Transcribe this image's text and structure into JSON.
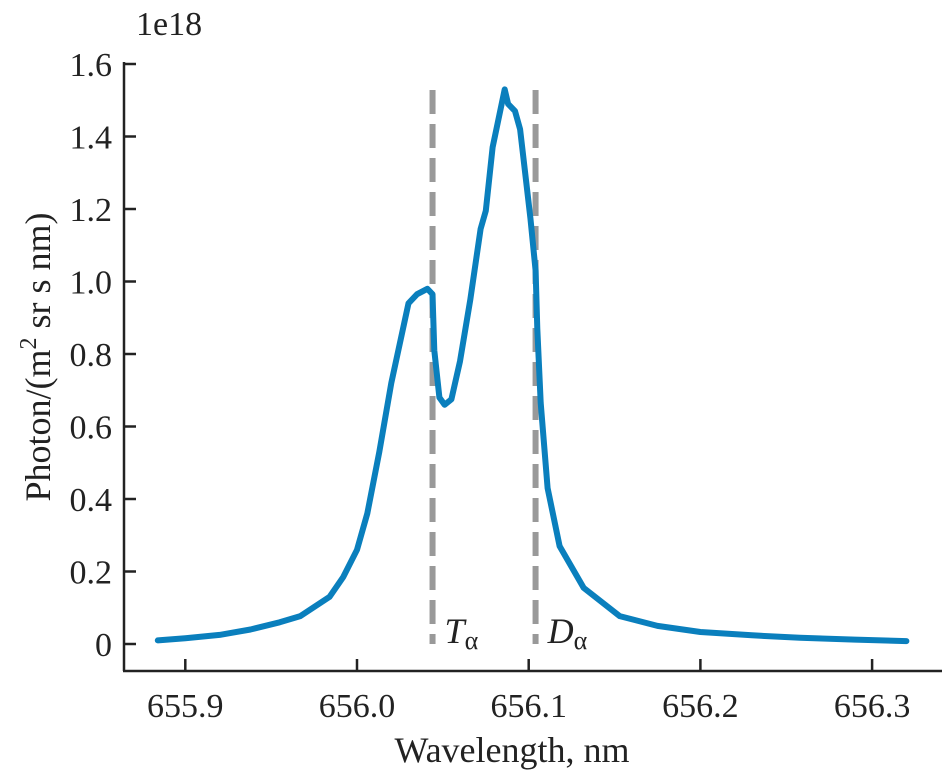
{
  "chart_data": {
    "type": "line",
    "title": "",
    "xlabel": "Wavelength, nm",
    "ylabel": "Photon/(m",
    "ylabel_sup": "2",
    "ylabel_rest": " sr s nm)",
    "y_multiplier": "1e18",
    "xlim": [
      655.87,
      656.34
    ],
    "ylim": [
      -0.075,
      1.6
    ],
    "x_ticks": [
      655.9,
      656.0,
      656.1,
      656.2,
      656.3
    ],
    "x_tick_labels": [
      "655.9",
      "656.0",
      "656.1",
      "656.2",
      "656.3"
    ],
    "y_ticks": [
      0,
      0.2,
      0.4,
      0.6,
      0.8,
      1.0,
      1.2,
      1.4,
      1.6
    ],
    "y_tick_labels": [
      "0",
      "0.2",
      "0.4",
      "0.6",
      "0.8",
      "1.0",
      "1.2",
      "1.4",
      "1.6"
    ],
    "grid": false,
    "series": [
      {
        "name": "spectrum",
        "color": "#0a7fbd",
        "x": [
          655.884,
          655.9,
          655.92,
          655.938,
          655.955,
          655.967,
          655.984,
          655.992,
          656.0,
          656.006,
          656.013,
          656.02,
          656.025,
          656.03,
          656.035,
          656.041,
          656.044,
          656.045,
          656.048,
          656.051,
          656.055,
          656.06,
          656.066,
          656.072,
          656.075,
          656.079,
          656.086,
          656.088,
          656.092,
          656.095,
          656.101,
          656.104,
          656.105,
          656.107,
          656.111,
          656.118,
          656.132,
          656.153,
          656.175,
          656.2,
          656.23,
          656.258,
          656.29,
          656.32
        ],
        "y": [
          0.01,
          0.016,
          0.025,
          0.04,
          0.06,
          0.077,
          0.13,
          0.185,
          0.26,
          0.36,
          0.53,
          0.72,
          0.83,
          0.94,
          0.965,
          0.98,
          0.965,
          0.81,
          0.68,
          0.66,
          0.675,
          0.78,
          0.95,
          1.145,
          1.195,
          1.37,
          1.53,
          1.49,
          1.47,
          1.42,
          1.175,
          1.03,
          0.87,
          0.665,
          0.43,
          0.27,
          0.155,
          0.077,
          0.05,
          0.033,
          0.024,
          0.017,
          0.012,
          0.008
        ]
      }
    ],
    "vlines": [
      {
        "x": 656.044,
        "label": "T",
        "sub": "α",
        "color": "#999999"
      },
      {
        "x": 656.104,
        "label": "D",
        "sub": "α",
        "color": "#999999"
      }
    ],
    "legend": "none"
  }
}
